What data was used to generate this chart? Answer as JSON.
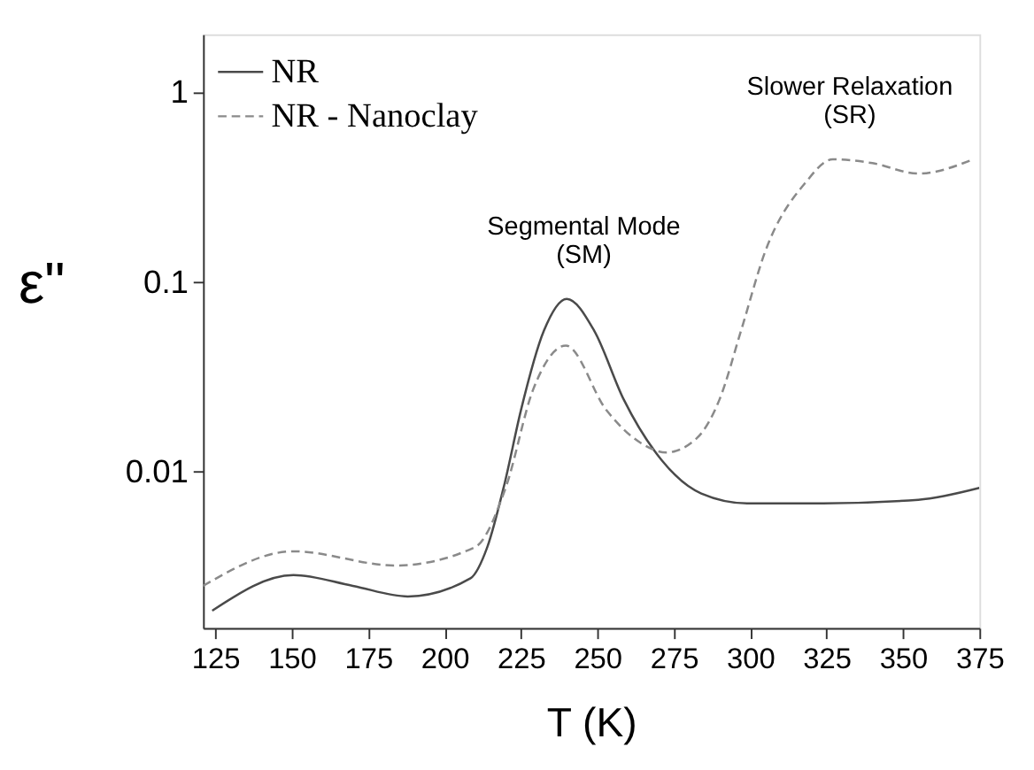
{
  "chart_data": {
    "type": "line",
    "xlabel": "T (K)",
    "ylabel": "ε\"",
    "log": "y",
    "xlim": [
      121,
      375
    ],
    "xticks": [
      125,
      150,
      175,
      200,
      225,
      250,
      275,
      300,
      325,
      350,
      375
    ],
    "ylim": [
      0.0015,
      2
    ],
    "yticks": [
      0.01,
      0.1,
      1
    ],
    "grid": false,
    "legend": "top left",
    "series": [
      {
        "name": "NR",
        "color": "#4a4a4a",
        "line_style": "solid",
        "x": [
          124,
          150.6,
          170,
          188,
          208.5,
          214,
          219.7,
          225,
          232.5,
          240,
          249,
          258.6,
          271,
          284,
          299,
          324,
          355,
          375
        ],
        "values": [
          0.00185,
          0.00285,
          0.0025,
          0.0022,
          0.00274,
          0.004,
          0.0087,
          0.021,
          0.055,
          0.081,
          0.055,
          0.024,
          0.0115,
          0.00766,
          0.0068,
          0.0068,
          0.0071,
          0.0082
        ]
      },
      {
        "name": "NR - Nanoclay",
        "color": "#8a8a8a",
        "line_style": "dashed",
        "x": [
          121,
          150.6,
          184,
          210,
          220,
          229,
          239.7,
          253,
          264,
          272.5,
          282.6,
          290,
          297,
          305,
          318,
          327,
          340,
          355,
          373
        ],
        "values": [
          0.0025,
          0.0038,
          0.0032,
          0.004,
          0.0082,
          0.027,
          0.046,
          0.021,
          0.0142,
          0.0126,
          0.015,
          0.024,
          0.055,
          0.145,
          0.33,
          0.44,
          0.42,
          0.37,
          0.44
        ]
      }
    ],
    "annotations": [
      {
        "text": "Segmental Mode\n(SM)",
        "x": 240,
        "y": 0.081
      },
      {
        "text": "Slower Relaxation\n(SR)",
        "x": 327,
        "y": 0.44
      }
    ]
  }
}
